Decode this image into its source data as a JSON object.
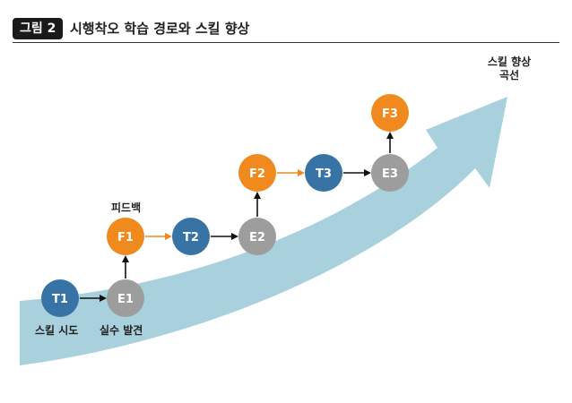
{
  "header": {
    "badge": "그림 2",
    "title": "시행착오 학습 경로와 스킬 향상"
  },
  "colors": {
    "teal": "#3873a6",
    "orange": "#f08a1e",
    "gray": "#9d9d9d",
    "arrow_band": "#a8d1dd"
  },
  "diagram": {
    "nodes": [
      {
        "id": "T1",
        "label": "T1",
        "kind": "teal"
      },
      {
        "id": "E1",
        "label": "E1",
        "kind": "gray"
      },
      {
        "id": "F1",
        "label": "F1",
        "kind": "orange"
      },
      {
        "id": "T2",
        "label": "T2",
        "kind": "teal"
      },
      {
        "id": "E2",
        "label": "E2",
        "kind": "gray"
      },
      {
        "id": "F2",
        "label": "F2",
        "kind": "orange"
      },
      {
        "id": "T3",
        "label": "T3",
        "kind": "teal"
      },
      {
        "id": "E3",
        "label": "E3",
        "kind": "gray"
      },
      {
        "id": "F3",
        "label": "F3",
        "kind": "orange"
      }
    ],
    "edges": [
      {
        "from": "T1",
        "to": "E1",
        "style": "black"
      },
      {
        "from": "E1",
        "to": "F1",
        "style": "black"
      },
      {
        "from": "F1",
        "to": "T2",
        "style": "orange"
      },
      {
        "from": "T2",
        "to": "E2",
        "style": "black"
      },
      {
        "from": "E2",
        "to": "F2",
        "style": "black"
      },
      {
        "from": "F2",
        "to": "T3",
        "style": "orange"
      },
      {
        "from": "T3",
        "to": "E3",
        "style": "black"
      },
      {
        "from": "E3",
        "to": "F3",
        "style": "black"
      }
    ],
    "captions": {
      "feedback": "피드백",
      "skill_attempt": "스킬 시도",
      "failure_discovery": "실수 발견",
      "curve_line1": "스킬 향상",
      "curve_line2": "곡선"
    }
  }
}
